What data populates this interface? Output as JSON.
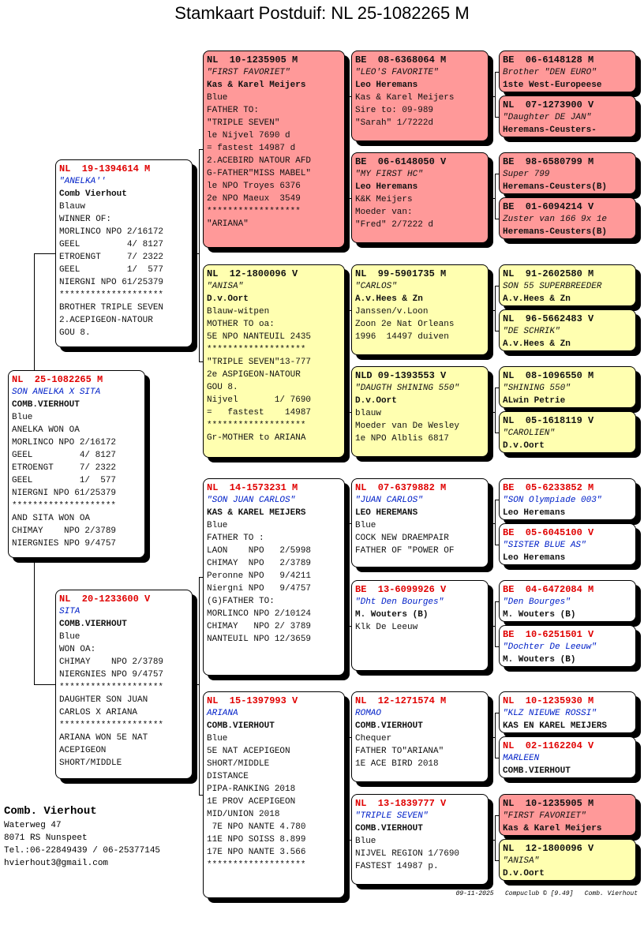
{
  "title": "Stamkaart Postduif: NL  25-1082265 M",
  "colors": {
    "sire_line_highlight": "#ff9999",
    "dam_line_highlight": "#ffffb0",
    "ring_red": "#e00000",
    "name_blue": "#0020c8"
  },
  "pedigree": [
    {
      "id": "subject",
      "highlight": "white",
      "lines": [
        "NL  25-1082265 M",
        "SON ANELKA X SITA",
        "COMB.VIERHOUT",
        "Blue",
        "ANELKA WON OA",
        "MORLINCO NPO 2/16172",
        "GEEL         4/ 8127",
        "ETROENGT     7/ 2322",
        "GEEL         1/  577",
        "NIERGNI NPO 61/25379",
        "********************",
        "AND SITA WON OA",
        "CHIMAY    NPO 2/3789",
        "NIERGNIES NPO 9/4757"
      ]
    },
    {
      "id": "sire",
      "highlight": "white",
      "lines": [
        "NL  19-1394614 M",
        "\"ANELKA''",
        "Comb Vierhout",
        "Blauw",
        "WINNER OF:",
        "MORLINCO NPO 2/16172",
        "GEEL         4/ 8127",
        "ETROENGT     7/ 2322",
        "GEEL         1/  577",
        "NIERGNI NPO 61/25379",
        "********************",
        "BROTHER TRIPLE SEVEN",
        "2.ACEPIGEON-NATOUR",
        "GOU 8."
      ]
    },
    {
      "id": "dam",
      "highlight": "white",
      "lines": [
        "NL  20-1233600 V",
        "SITA",
        "COMB.VIERHOUT",
        "Blue",
        "WON OA:",
        "CHIMAY    NPO 2/3789",
        "NIERGNIES NPO 9/4757",
        "********************",
        "DAUGHTER SON JUAN",
        "CARLOS X ARIANA",
        "********************",
        "ARIANA WON 5E NAT",
        "ACEPIGEON",
        "SHORT/MIDDLE"
      ]
    },
    {
      "id": "ss",
      "highlight": "pink",
      "lines": [
        "NL  10-1235905 M",
        "\"FIRST FAVORIET\"",
        "Kas & Karel Meijers",
        "Blue",
        "FATHER TO:",
        "\"TRIPLE SEVEN\"",
        "le Nijvel 7690 d",
        "= fastest 14987 d",
        "2.ACEBIRD NATOUR AFD",
        "G-FATHER\"MISS MABEL\"",
        "le NPO Troyes 6376",
        "2e NPO Maeux  3549",
        "******************",
        "\"ARIANA\""
      ]
    },
    {
      "id": "sd",
      "highlight": "yellow",
      "lines": [
        "NL  12-1800096 V",
        "\"ANISA\"",
        "D.v.Oort",
        "Blauw-witpen",
        "MOTHER TO oa:",
        "5E NPO NANTEUIL 2435",
        "*******************",
        "\"TRIPLE SEVEN\"13-777",
        "2e ASPIGEON-NATOUR",
        "GOU 8.",
        "Nijvel       1/ 7690",
        "=   fastest    14987",
        "*******************",
        "Gr-MOTHER to ARIANA"
      ]
    },
    {
      "id": "ds",
      "highlight": "white",
      "lines": [
        "NL  14-1573231 M",
        "\"SON JUAN CARLOS\"",
        "KAS & KAREL MEIJERS",
        "Blue",
        "FATHER TO :",
        "LAON    NPO   2/5998",
        "CHIMAY  NPO   2/3789",
        "Peronne NPO   9/4211",
        "Niergni NPO   9/4757",
        "(G)FATHER TO:",
        "MORLINCO NPO 2/10124",
        "CHIMAY   NPO 2/ 3789",
        "NANTEUIL NPO 12/3659"
      ]
    },
    {
      "id": "dd",
      "highlight": "white",
      "lines": [
        "NL  15-1397993 V",
        "ARIANA",
        "COMB.VIERHOUT",
        "Blue",
        "5E NAT ACEPIGEON",
        "SHORT/MIDDLE",
        "DISTANCE",
        "PIPA-RANKING 2018",
        "1E PROV ACEPIGEON",
        "MID/UNION 2018",
        " 7E NPO NANTE 4.780",
        "11E NPO SOISS 8.899",
        "17E NPO NANTE 3.566",
        "*******************"
      ]
    },
    {
      "id": "sss",
      "highlight": "pink",
      "lines": [
        "BE  08-6368064 M",
        "\"LEO'S FAVORITE\"",
        "Leo Heremans",
        "Kas & Karel Meijers",
        "Sire to: 09-989",
        "\"Sarah\" 1/7222d"
      ]
    },
    {
      "id": "ssd",
      "highlight": "pink",
      "lines": [
        "BE  06-6148050 V",
        "\"MY FIRST HC\"",
        "Leo Heremans",
        "K&K Meijers",
        "Moeder van:",
        "\"Fred\" 2/7222 d"
      ]
    },
    {
      "id": "sds",
      "highlight": "yellow",
      "lines": [
        "NL  99-5901735 M",
        "\"CARLOS\"",
        "A.v.Hees & Zn",
        "Janssen/v.Loon",
        "Zoon 2e Nat Orleans",
        "1996  14497 duiven"
      ]
    },
    {
      "id": "sdd",
      "highlight": "yellow",
      "lines": [
        "NLD 09-1393553 V",
        "\"DAUGTH SHINING 550\"",
        "D.v.Oort",
        "blauw",
        "Moeder van De Wesley",
        "1e NPO Alblis 6817"
      ]
    },
    {
      "id": "dss",
      "highlight": "white",
      "lines": [
        "NL  07-6379882 M",
        "\"JUAN CARLOS\"",
        "LEO HEREMANS",
        "Blue",
        "COCK NEW DRAEMPAIR",
        "FATHER OF \"POWER OF"
      ]
    },
    {
      "id": "dsd",
      "highlight": "white",
      "lines": [
        "BE  13-6099926 V",
        "\"Dht Den Bourges\"",
        "M. Wouters (B)",
        "Klk De Leeuw"
      ]
    },
    {
      "id": "dds",
      "highlight": "white",
      "lines": [
        "NL  12-1271574 M",
        "ROMAO",
        "COMB.VIERHOUT",
        "Chequer",
        "FATHER TO\"ARIANA\"",
        "1E ACE BIRD 2018"
      ]
    },
    {
      "id": "ddd",
      "highlight": "white",
      "lines": [
        "NL  13-1839777 V",
        "\"TRIPLE SEVEN\"",
        "COMB.VIERHOUT",
        "Blue",
        "NIJVEL REGION 1/7690",
        "FASTEST 14987 p."
      ]
    },
    {
      "id": "ssss",
      "highlight": "pink",
      "lines": [
        "BE  06-6148128 M",
        "Brother \"DEN EURO\"",
        "1ste West-Europeese"
      ]
    },
    {
      "id": "sssd",
      "highlight": "pink",
      "lines": [
        "NL  07-1273900 V",
        "\"Daughter DE JAN\"",
        "Heremans-Ceusters-"
      ]
    },
    {
      "id": "ssds",
      "highlight": "pink",
      "lines": [
        "BE  98-6580799 M",
        "Super 799",
        "Heremans-Ceusters(B)"
      ]
    },
    {
      "id": "ssdd",
      "highlight": "pink",
      "lines": [
        "BE  01-6094214 V",
        "Zuster van 166 9x 1e",
        "Heremans-Ceusters(B)"
      ]
    },
    {
      "id": "sdss",
      "highlight": "yellow",
      "lines": [
        "NL  91-2602580 M",
        "SON 55 SUPERBREEDER",
        "A.v.Hees & Zn"
      ]
    },
    {
      "id": "sdsd",
      "highlight": "yellow",
      "lines": [
        "NL  96-5662483 V",
        "\"DE SCHRIK\"",
        "A.v.Hees & Zn"
      ]
    },
    {
      "id": "sdds",
      "highlight": "yellow",
      "lines": [
        "NL  08-1096550 M",
        "\"SHINING 550\"",
        "ALwin Petrie"
      ]
    },
    {
      "id": "sddd",
      "highlight": "yellow",
      "lines": [
        "NL  05-1618119 V",
        "\"CAROLIEN\"",
        "D.v.Oort"
      ]
    },
    {
      "id": "dsss",
      "highlight": "white",
      "lines": [
        "BE  05-6233852 M",
        "\"SON Olympiade 003\"",
        "Leo Heremans"
      ]
    },
    {
      "id": "dssd",
      "highlight": "white",
      "lines": [
        "BE  05-6045100 V",
        "\"SISTER BLUE AS\"",
        "Leo Heremans"
      ]
    },
    {
      "id": "dsds",
      "highlight": "white",
      "lines": [
        "BE  04-6472084 M",
        "\"Den Bourges\"",
        "M. Wouters (B)"
      ]
    },
    {
      "id": "dsdd",
      "highlight": "white",
      "lines": [
        "BE  10-6251501 V",
        "\"Dochter De Leeuw\"",
        "M. Wouters (B)"
      ]
    },
    {
      "id": "ddss",
      "highlight": "white",
      "lines": [
        "NL  10-1235930 M",
        "\"KLZ NIEUWE ROSSI\"",
        "KAS EN KAREL MEIJERS"
      ]
    },
    {
      "id": "ddsd",
      "highlight": "white",
      "lines": [
        "NL  02-1162204 V",
        "MARLEEN",
        "COMB.VIERHOUT"
      ]
    },
    {
      "id": "ddds",
      "highlight": "pink",
      "lines": [
        "NL  10-1235905 M",
        "\"FIRST FAVORIET\"",
        "Kas & Karel Meijers"
      ]
    },
    {
      "id": "dddd",
      "highlight": "yellow",
      "lines": [
        "NL  12-1800096 V",
        "\"ANISA\"",
        "D.v.Oort"
      ]
    }
  ],
  "breeder": {
    "name": "Comb. Vierhout",
    "address": [
      "Waterweg 47",
      "8071 RS  Nunspeet",
      "Tel.:06-22849439 / 06-25377145",
      "hvierhout3@gmail.com"
    ]
  },
  "footer": "09-11-2025   Compuclub © [9.49]   Comb. Vierhout"
}
